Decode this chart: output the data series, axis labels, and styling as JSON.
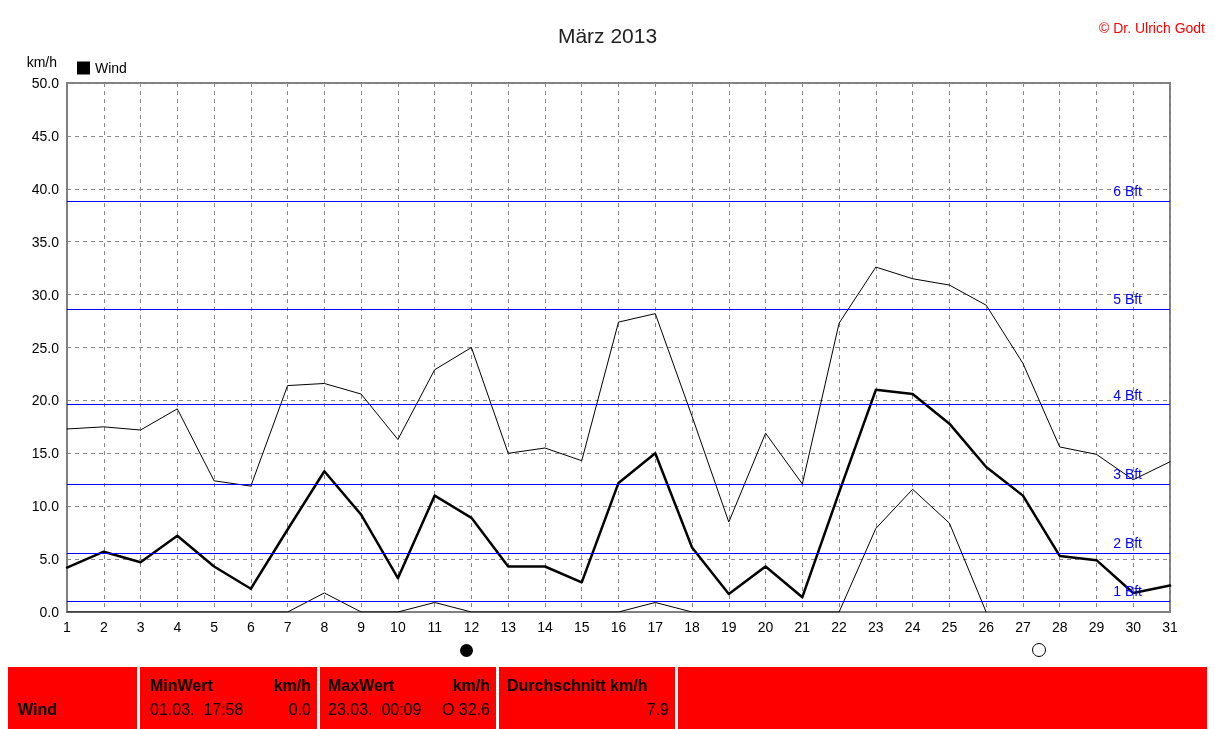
{
  "chart_data": {
    "type": "line",
    "title": "März 2013",
    "ylabel": "km/h",
    "x": [
      1,
      2,
      3,
      4,
      5,
      6,
      7,
      8,
      9,
      10,
      11,
      12,
      13,
      14,
      15,
      16,
      17,
      18,
      19,
      20,
      21,
      22,
      23,
      24,
      25,
      26,
      27,
      28,
      29,
      30,
      31
    ],
    "series": [
      {
        "color": "#000000",
        "values": [
          17.3,
          17.5,
          17.2,
          19.2,
          12.4,
          11.9,
          21.4,
          21.6,
          20.6,
          16.3,
          22.9,
          25.0,
          15.0,
          15.5,
          14.3,
          27.4,
          28.2,
          18.5,
          8.5,
          16.9,
          12.1,
          27.3,
          32.6,
          31.5,
          30.9,
          29.0,
          23.5,
          15.6,
          14.9,
          12.5,
          14.2
        ]
      },
      {
        "name": "Wind",
        "color": "#000000",
        "values": [
          4.2,
          5.7,
          4.7,
          7.2,
          4.3,
          2.2,
          7.8,
          13.3,
          9.2,
          3.2,
          11.0,
          8.9,
          4.3,
          4.3,
          2.8,
          12.2,
          15.0,
          6.1,
          1.7,
          4.3,
          1.4,
          11.3,
          21.0,
          20.6,
          17.8,
          13.7,
          11.0,
          5.3,
          4.9,
          1.8,
          2.5
        ]
      },
      {
        "color": "#000000",
        "values": [
          0,
          0,
          0,
          0,
          0,
          0,
          0,
          1.8,
          0,
          0,
          0.9,
          0,
          0,
          0,
          0,
          0,
          0.9,
          0,
          0,
          0,
          0,
          0,
          7.9,
          11.6,
          8.4,
          0,
          null,
          null,
          null,
          null,
          null
        ]
      }
    ],
    "xlim": [
      1,
      31
    ],
    "xticks": [
      1,
      2,
      3,
      4,
      5,
      6,
      7,
      8,
      9,
      10,
      11,
      12,
      13,
      14,
      15,
      16,
      17,
      18,
      19,
      20,
      21,
      22,
      23,
      24,
      25,
      26,
      27,
      28,
      29,
      30,
      31
    ],
    "ylim": [
      0,
      50
    ],
    "yticks": [
      {
        "value": 0,
        "label": "0.0"
      },
      {
        "value": 5,
        "label": "5.0"
      },
      {
        "value": 10,
        "label": "10.0"
      },
      {
        "value": 15,
        "label": "15.0"
      },
      {
        "value": 20,
        "label": "20.0"
      },
      {
        "value": 25,
        "label": "25.0"
      },
      {
        "value": 30,
        "label": "30.0"
      },
      {
        "value": 35,
        "label": "35.0"
      },
      {
        "value": 40,
        "label": "40.0"
      },
      {
        "value": 45,
        "label": "45.0"
      },
      {
        "value": 50,
        "label": "50.0"
      }
    ],
    "grid": true,
    "legend": "top left",
    "marker": "none",
    "line_style": "solid",
    "ref_lines": [
      {
        "axis": "y",
        "value": 1.0,
        "label": "1 Bft",
        "color": "#0000ff"
      },
      {
        "axis": "y",
        "value": 5.6,
        "label": "2 Bft",
        "color": "#0000ff"
      },
      {
        "axis": "y",
        "value": 12.1,
        "label": "3 Bft",
        "color": "#0000ff"
      },
      {
        "axis": "y",
        "value": 19.6,
        "label": "4 Bft",
        "color": "#0000ff"
      },
      {
        "axis": "y",
        "value": 28.6,
        "label": "5 Bft",
        "color": "#0000ff"
      },
      {
        "axis": "y",
        "value": 38.8,
        "label": "6 Bft",
        "color": "#0000ff"
      }
    ],
    "annotations": [
      "© Dr. Ulrich Godt",
      "Wind",
      "MinWert",
      "km/h",
      "01.03.  17:58",
      "0.0",
      "MaxWert",
      "km/h",
      "23.03.  00:09",
      "O 32.6",
      "Durchschnitt km/h",
      "7.9"
    ]
  }
}
